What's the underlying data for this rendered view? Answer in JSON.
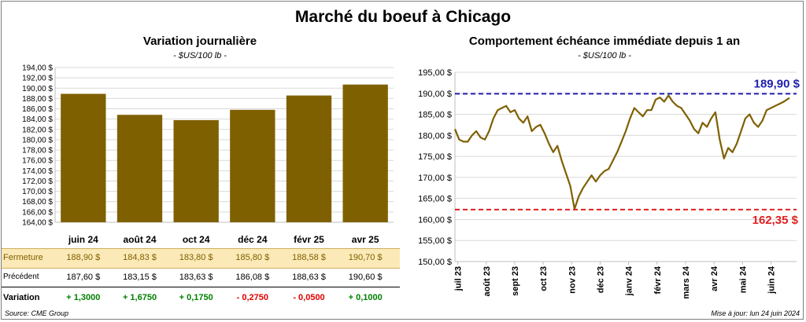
{
  "title": "Marché du boeuf à Chicago",
  "left_chart": {
    "title": "Variation journalière",
    "unit": "- $US/100 lb -"
  },
  "right_chart": {
    "title": "Comportement échéance immédiate depuis 1 an",
    "unit": "- $US/100 lb -"
  },
  "table": {
    "row_labels": [
      "Fermeture",
      "Précédent",
      "Variation"
    ],
    "fermeture": [
      "188,90 $",
      "184,83 $",
      "183,80 $",
      "185,80 $",
      "188,58 $",
      "190,70 $"
    ],
    "precedent": [
      "187,60 $",
      "183,15 $",
      "183,63 $",
      "186,08 $",
      "188,63 $",
      "190,60 $"
    ],
    "variation": [
      "+ 1,3000",
      "+ 1,6750",
      "+ 0,1750",
      "- 0,2750",
      "- 0,0500",
      "+ 0,1000"
    ]
  },
  "footer": {
    "source": "Source: CME Group",
    "updated": "Mise à jour: lun 24 juin 2024"
  },
  "colors": {
    "bar": "#7f6000",
    "line": "#7f6000",
    "high_line": "#1f1faf",
    "low_line": "#e02020",
    "positive": "#008000",
    "negative": "#e00000",
    "fermeture_bg": "#fbe9b7"
  },
  "chart_data": [
    {
      "type": "bar",
      "categories": [
        "juin 24",
        "août 24",
        "oct 24",
        "déc 24",
        "févr 25",
        "avr 25"
      ],
      "values": [
        188.9,
        184.83,
        183.8,
        185.8,
        188.58,
        190.7
      ],
      "ylim": [
        164,
        194
      ],
      "yticks": [
        "164,00 $",
        "166,00 $",
        "168,00 $",
        "170,00 $",
        "172,00 $",
        "174,00 $",
        "176,00 $",
        "178,00 $",
        "180,00 $",
        "182,00 $",
        "184,00 $",
        "186,00 $",
        "188,00 $",
        "190,00 $",
        "192,00 $",
        "194,00 $"
      ],
      "grid": true
    },
    {
      "type": "line",
      "ylim": [
        150,
        195
      ],
      "yticks": [
        "150,00 $",
        "155,00 $",
        "160,00 $",
        "165,00 $",
        "170,00 $",
        "175,00 $",
        "180,00 $",
        "185,00 $",
        "190,00 $",
        "195,00 $"
      ],
      "xticks": [
        "juil 23",
        "août 23",
        "sept 23",
        "oct 23",
        "nov 23",
        "déc 23",
        "janv 24",
        "févr 24",
        "mars 24",
        "avr 24",
        "mai 24",
        "juin 24"
      ],
      "x_month_index": [
        0.0,
        0.15,
        0.3,
        0.45,
        0.6,
        0.75,
        0.9,
        1.05,
        1.2,
        1.35,
        1.5,
        1.65,
        1.8,
        1.95,
        2.1,
        2.25,
        2.4,
        2.55,
        2.7,
        2.85,
        3.0,
        3.15,
        3.3,
        3.45,
        3.6,
        3.75,
        3.9,
        4.05,
        4.2,
        4.35,
        4.5,
        4.65,
        4.8,
        4.95,
        5.1,
        5.25,
        5.4,
        5.55,
        5.7,
        5.85,
        6.0,
        6.15,
        6.3,
        6.45,
        6.6,
        6.75,
        6.9,
        7.05,
        7.2,
        7.35,
        7.5,
        7.65,
        7.8,
        7.95,
        8.1,
        8.25,
        8.4,
        8.55,
        8.7,
        8.85,
        9.0,
        9.15,
        9.3,
        9.45,
        9.6,
        9.75,
        9.9,
        10.05,
        10.2,
        10.35,
        10.5,
        10.65,
        10.8,
        10.95,
        11.1,
        11.25,
        11.4,
        11.55,
        11.75
      ],
      "values": [
        181.5,
        179.0,
        178.5,
        178.5,
        180.0,
        181.0,
        179.5,
        179.0,
        181.0,
        184.0,
        186.0,
        186.5,
        187.0,
        185.5,
        186.0,
        184.0,
        183.0,
        184.5,
        181.0,
        182.0,
        182.5,
        180.5,
        178.0,
        176.0,
        177.5,
        174.0,
        171.0,
        168.0,
        162.5,
        165.5,
        167.5,
        169.0,
        170.5,
        169.0,
        170.5,
        171.5,
        172.0,
        174.0,
        176.0,
        178.5,
        181.0,
        184.0,
        186.5,
        185.5,
        184.5,
        186.0,
        186.0,
        188.5,
        189.0,
        188.0,
        189.5,
        188.0,
        187.0,
        186.5,
        185.0,
        183.5,
        181.5,
        180.5,
        183.0,
        182.0,
        184.0,
        185.5,
        179.0,
        174.5,
        177.0,
        176.0,
        178.0,
        181.0,
        184.0,
        185.0,
        183.0,
        182.0,
        183.5,
        186.0,
        186.5,
        187.0,
        187.5,
        188.0,
        188.9
      ],
      "high": {
        "value": 189.9,
        "label": "189,90 $"
      },
      "low": {
        "value": 162.35,
        "label": "162,35 $"
      },
      "grid": true
    }
  ]
}
